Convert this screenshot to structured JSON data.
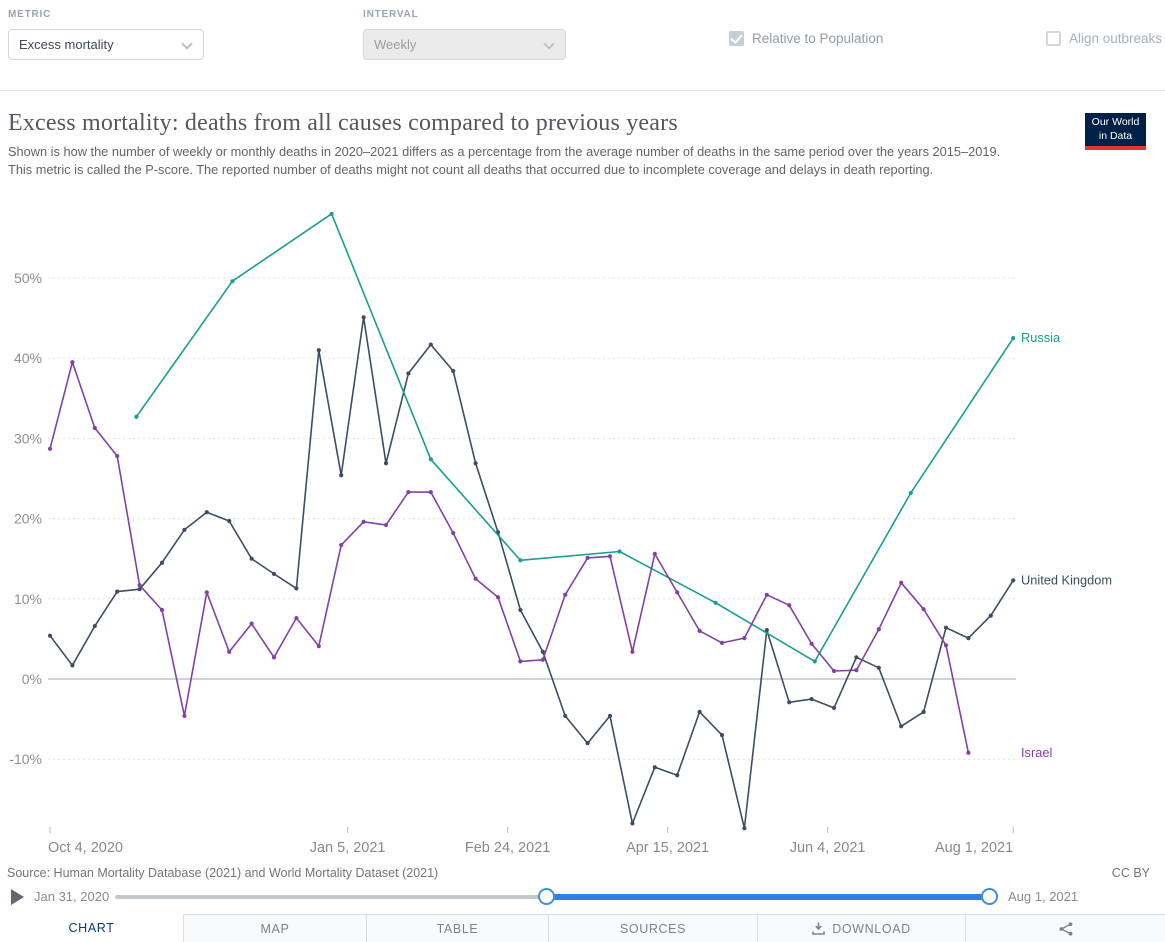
{
  "controls": {
    "metric_label": "METRIC",
    "metric_value": "Excess mortality",
    "interval_label": "INTERVAL",
    "interval_value": "Weekly",
    "relative_to_population_label": "Relative to Population",
    "align_outbreaks_label": "Align outbreaks"
  },
  "header": {
    "title": "Excess mortality: deaths from all causes compared to previous years",
    "subtitle": "Shown is how the number of weekly or monthly deaths in 2020–2021 differs as a percentage from the average number of deaths in the same period over the years 2015–2019. This metric is called the P-score. The reported number of deaths might not count all deaths that occurred due to incomplete coverage and delays in death reporting.",
    "logo_line1": "Our World",
    "logo_line2": "in Data",
    "logo_bg": "#002147",
    "logo_red": "#e0362c"
  },
  "chart_data": {
    "type": "line",
    "title": "Excess mortality: deaths from all causes compared to previous years",
    "xlabel": "",
    "ylabel": "",
    "unit": "%",
    "ylim": [
      -22,
      60
    ],
    "grid": true,
    "legend_position": "right-end-labels",
    "yticks": [
      -10,
      0,
      10,
      20,
      30,
      40,
      50
    ],
    "xticks": [
      {
        "label": "Oct 4, 2020",
        "day": 0
      },
      {
        "label": "Jan 5, 2021",
        "day": 93
      },
      {
        "label": "Feb 24, 2021",
        "day": 143
      },
      {
        "label": "Apr 15, 2021",
        "day": 193
      },
      {
        "label": "Jun 4, 2021",
        "day": 243
      },
      {
        "label": "Aug 1, 2021",
        "day": 301
      }
    ],
    "x_epoch": "days since Oct 4, 2020",
    "series": [
      {
        "name": "United Kingdom",
        "color": "#3d4d63",
        "points": [
          [
            0,
            5.4
          ],
          [
            7,
            1.7
          ],
          [
            14,
            6.6
          ],
          [
            21,
            10.9
          ],
          [
            28,
            11.2
          ],
          [
            35,
            14.5
          ],
          [
            42,
            18.6
          ],
          [
            49,
            20.8
          ],
          [
            56,
            19.7
          ],
          [
            63,
            15.0
          ],
          [
            70,
            13.1
          ],
          [
            77,
            11.3
          ],
          [
            84,
            41.0
          ],
          [
            91,
            25.4
          ],
          [
            98,
            45.1
          ],
          [
            105,
            26.9
          ],
          [
            112,
            38.1
          ],
          [
            119,
            41.7
          ],
          [
            126,
            38.4
          ],
          [
            133,
            26.9
          ],
          [
            140,
            18.3
          ],
          [
            147,
            8.6
          ],
          [
            154,
            3.4
          ],
          [
            161,
            -4.6
          ],
          [
            168,
            -8.0
          ],
          [
            175,
            -4.6
          ],
          [
            182,
            -18.0
          ],
          [
            189,
            -11.0
          ],
          [
            196,
            -12.0
          ],
          [
            203,
            -4.1
          ],
          [
            210,
            -7.0
          ],
          [
            217,
            -18.6
          ],
          [
            224,
            6.1
          ],
          [
            231,
            -2.9
          ],
          [
            238,
            -2.5
          ],
          [
            245,
            -3.6
          ],
          [
            252,
            2.7
          ],
          [
            259,
            1.4
          ],
          [
            266,
            -5.9
          ],
          [
            273,
            -4.1
          ],
          [
            280,
            6.4
          ],
          [
            287,
            5.1
          ],
          [
            294,
            7.9
          ],
          [
            301,
            12.3
          ]
        ]
      },
      {
        "name": "Russia",
        "color": "#1a9d93",
        "points": [
          [
            27,
            32.7
          ],
          [
            57,
            49.6
          ],
          [
            88,
            58.0
          ],
          [
            119,
            27.4
          ],
          [
            147,
            14.8
          ],
          [
            178,
            15.9
          ],
          [
            208,
            9.5
          ],
          [
            239,
            2.2
          ],
          [
            269,
            23.2
          ],
          [
            301,
            42.5
          ]
        ]
      },
      {
        "name": "Israel",
        "color": "#8441a4",
        "points": [
          [
            0,
            28.7
          ],
          [
            7,
            39.5
          ],
          [
            14,
            31.3
          ],
          [
            21,
            27.8
          ],
          [
            28,
            11.7
          ],
          [
            35,
            8.6
          ],
          [
            42,
            -4.6
          ],
          [
            49,
            10.8
          ],
          [
            56,
            3.4
          ],
          [
            63,
            6.9
          ],
          [
            70,
            2.7
          ],
          [
            77,
            7.6
          ],
          [
            84,
            4.1
          ],
          [
            91,
            16.7
          ],
          [
            98,
            19.6
          ],
          [
            105,
            19.2
          ],
          [
            112,
            23.3
          ],
          [
            119,
            23.3
          ],
          [
            126,
            18.2
          ],
          [
            133,
            12.5
          ],
          [
            140,
            10.2
          ],
          [
            147,
            2.2
          ],
          [
            154,
            2.4
          ],
          [
            161,
            10.5
          ],
          [
            168,
            15.1
          ],
          [
            175,
            15.3
          ],
          [
            182,
            3.4
          ],
          [
            189,
            15.6
          ],
          [
            196,
            10.8
          ],
          [
            203,
            6.0
          ],
          [
            210,
            4.5
          ],
          [
            217,
            5.1
          ],
          [
            224,
            10.5
          ],
          [
            231,
            9.2
          ],
          [
            238,
            4.4
          ],
          [
            245,
            1.0
          ],
          [
            252,
            1.1
          ],
          [
            259,
            6.2
          ],
          [
            266,
            12.0
          ],
          [
            273,
            8.7
          ],
          [
            280,
            4.2
          ],
          [
            287,
            -9.2
          ]
        ]
      }
    ]
  },
  "footer": {
    "source": "Source: Human Mortality Database (2021) and World Mortality Dataset (2021)",
    "license": "CC BY"
  },
  "timeline": {
    "start_date": "Jan 31, 2020",
    "end_date": "Aug 1, 2021"
  },
  "tabs": [
    {
      "label": "CHART",
      "active": true
    },
    {
      "label": "MAP",
      "active": false
    },
    {
      "label": "TABLE",
      "active": false
    },
    {
      "label": "SOURCES",
      "active": false
    },
    {
      "label": "DOWNLOAD",
      "active": false
    }
  ]
}
